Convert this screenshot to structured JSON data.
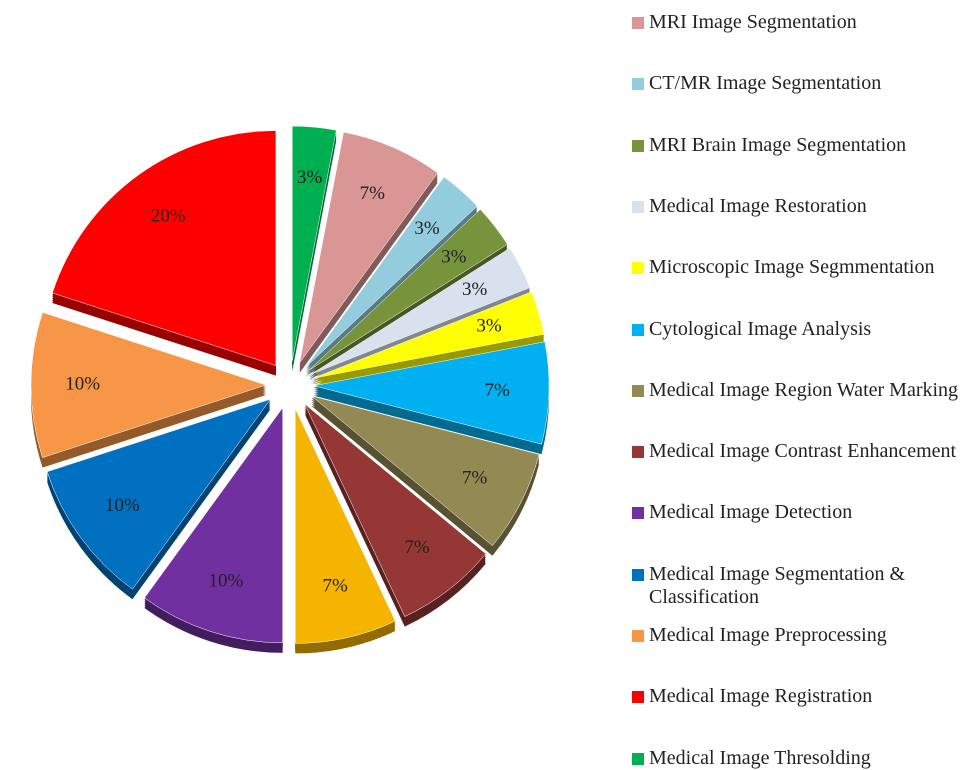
{
  "chart_data": {
    "type": "pie",
    "categories": [
      "MRI Image Segmentation",
      "CT/MR Image Segmentation",
      "MRI Brain Image Segmentation",
      "Medical Image Restoration",
      "Microscopic Image Segmmentation",
      "Cytological Image Analysis",
      "Medical Image Region Water Marking",
      "Medical Image Contrast Enhancement",
      null,
      "Medical Image Detection",
      "Medical Image Segmentation & Classification",
      "Medical Image Preprocessing",
      "Medical Image Registration",
      "Medical Image Thresolding"
    ],
    "values": [
      7,
      3,
      3,
      3,
      3,
      7,
      7,
      7,
      7,
      10,
      10,
      10,
      20,
      3
    ],
    "value_labels": [
      "7%",
      "3%",
      "3%",
      "3%",
      "3%",
      "7%",
      "7%",
      "7%",
      "7%",
      "10%",
      "10%",
      "10%",
      "20%",
      "3%"
    ],
    "colors": [
      "#d99694",
      "#93cddd",
      "#77933c",
      "#d9e1ee",
      "#ffff00",
      "#00b0f0",
      "#938953",
      "#953735",
      "#f4b400",
      "#7030a0",
      "#0070c0",
      "#f79646",
      "#ff0000",
      "#00b050"
    ],
    "legend": "right"
  }
}
